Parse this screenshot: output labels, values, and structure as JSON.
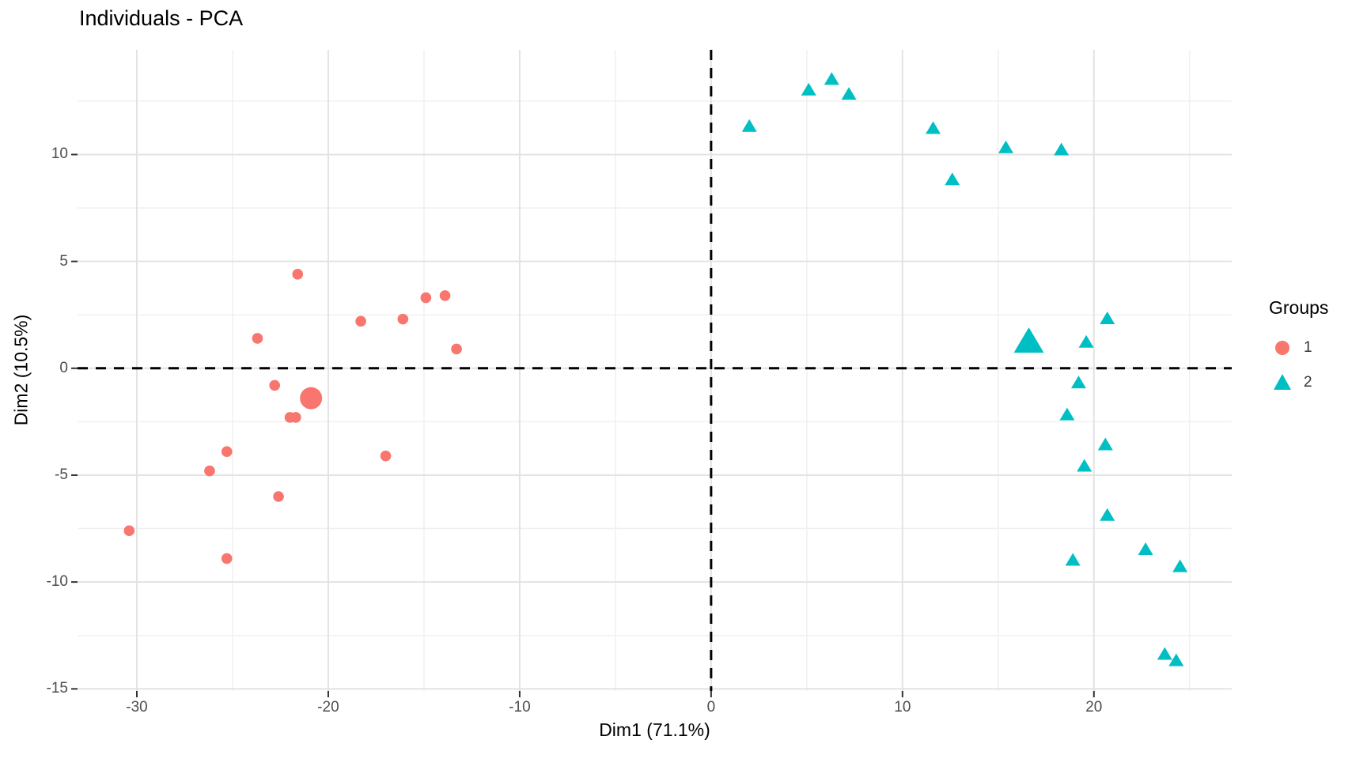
{
  "title": "Individuals - PCA",
  "axes": {
    "x": {
      "label": "Dim1 (71.1%)",
      "ticks": [
        -30,
        -20,
        -10,
        0,
        10,
        20
      ],
      "minor_ticks": [
        -25,
        -15,
        -5,
        5,
        15,
        25
      ],
      "min": -33.1,
      "max": 27.2
    },
    "y": {
      "label": "Dim2 (10.5%)",
      "ticks": [
        -15,
        -10,
        -5,
        0,
        5,
        10
      ],
      "minor_ticks": [
        -12.5,
        -7.5,
        -2.5,
        2.5,
        7.5,
        12.5
      ],
      "min": -15.1,
      "max": 14.9
    }
  },
  "reference_lines": {
    "vertical_at_x": 0,
    "horizontal_at_y": 0,
    "style": "dashed",
    "color": "#000000"
  },
  "legend": {
    "title": "Groups",
    "position": "right",
    "items": [
      {
        "label": "1",
        "marker": "circle",
        "color": "#F8766D"
      },
      {
        "label": "2",
        "marker": "triangle",
        "color": "#00BFC4"
      }
    ]
  },
  "colors": {
    "background": "#FFFFFF",
    "grid_major": "#E3E3E3",
    "grid_minor": "#F0F0F0",
    "axis_tick": "#333333",
    "tick_label": "#4D4D4D",
    "group1": "#F8766D",
    "group2": "#00BFC4"
  },
  "chart_data": {
    "type": "scatter",
    "title": "Individuals - PCA",
    "xlabel": "Dim1 (71.1%)",
    "ylabel": "Dim2 (10.5%)",
    "xlim": [
      -33.1,
      27.2
    ],
    "ylim": [
      -15.1,
      14.9
    ],
    "grid": true,
    "legend_position": "right",
    "series": [
      {
        "name": "1",
        "marker": "circle",
        "color": "#F8766D",
        "points": [
          [
            -21.6,
            4.4
          ],
          [
            -14.9,
            3.3
          ],
          [
            -13.9,
            3.4
          ],
          [
            -18.3,
            2.2
          ],
          [
            -16.1,
            2.3
          ],
          [
            -23.7,
            1.4
          ],
          [
            -13.3,
            0.9
          ],
          [
            -22.8,
            -0.8
          ],
          [
            -22.0,
            -2.3
          ],
          [
            -21.7,
            -2.3
          ],
          [
            -25.3,
            -3.9
          ],
          [
            -17.0,
            -4.1
          ],
          [
            -26.2,
            -4.8
          ],
          [
            -22.6,
            -6.0
          ],
          [
            -30.4,
            -7.6
          ],
          [
            -25.3,
            -8.9
          ]
        ],
        "centroid": [
          -20.9,
          -1.4
        ]
      },
      {
        "name": "2",
        "marker": "triangle",
        "color": "#00BFC4",
        "points": [
          [
            2.0,
            11.3
          ],
          [
            5.1,
            13.0
          ],
          [
            6.3,
            13.5
          ],
          [
            7.2,
            12.8
          ],
          [
            11.6,
            11.2
          ],
          [
            12.6,
            8.8
          ],
          [
            15.4,
            10.3
          ],
          [
            18.3,
            10.2
          ],
          [
            20.7,
            2.3
          ],
          [
            19.6,
            1.2
          ],
          [
            19.2,
            -0.7
          ],
          [
            18.6,
            -2.2
          ],
          [
            20.6,
            -3.6
          ],
          [
            19.5,
            -4.6
          ],
          [
            20.7,
            -6.9
          ],
          [
            18.9,
            -9.0
          ],
          [
            22.7,
            -8.5
          ],
          [
            24.5,
            -9.3
          ],
          [
            23.7,
            -13.4
          ],
          [
            24.3,
            -13.7
          ]
        ],
        "centroid": [
          16.6,
          1.2
        ]
      }
    ]
  }
}
